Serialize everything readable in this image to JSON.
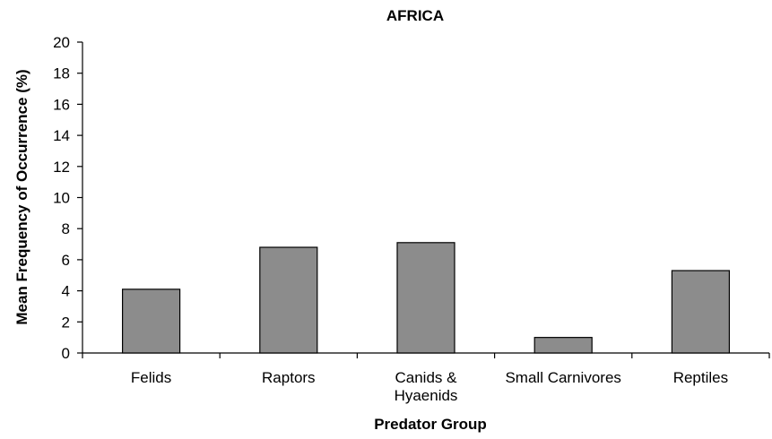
{
  "chart_data": {
    "type": "bar",
    "title": "AFRICA",
    "xlabel": "Predator Group",
    "ylabel": "Mean Frequency of Occurrence (%)",
    "categories": [
      [
        "Felids"
      ],
      [
        "Raptors"
      ],
      [
        "Canids &",
        "Hyaenids"
      ],
      [
        "Small Carnivores"
      ],
      [
        "Reptiles"
      ]
    ],
    "values": [
      4.1,
      6.8,
      7.1,
      1.0,
      5.3
    ],
    "ylim": [
      0,
      20
    ],
    "yticks": [
      0,
      2,
      4,
      6,
      8,
      10,
      12,
      14,
      16,
      18,
      20
    ],
    "grid": false,
    "legend": "none",
    "colors": {
      "bar_fill": "#8c8c8c",
      "bar_stroke": "#000000",
      "axis": "#000000"
    }
  }
}
